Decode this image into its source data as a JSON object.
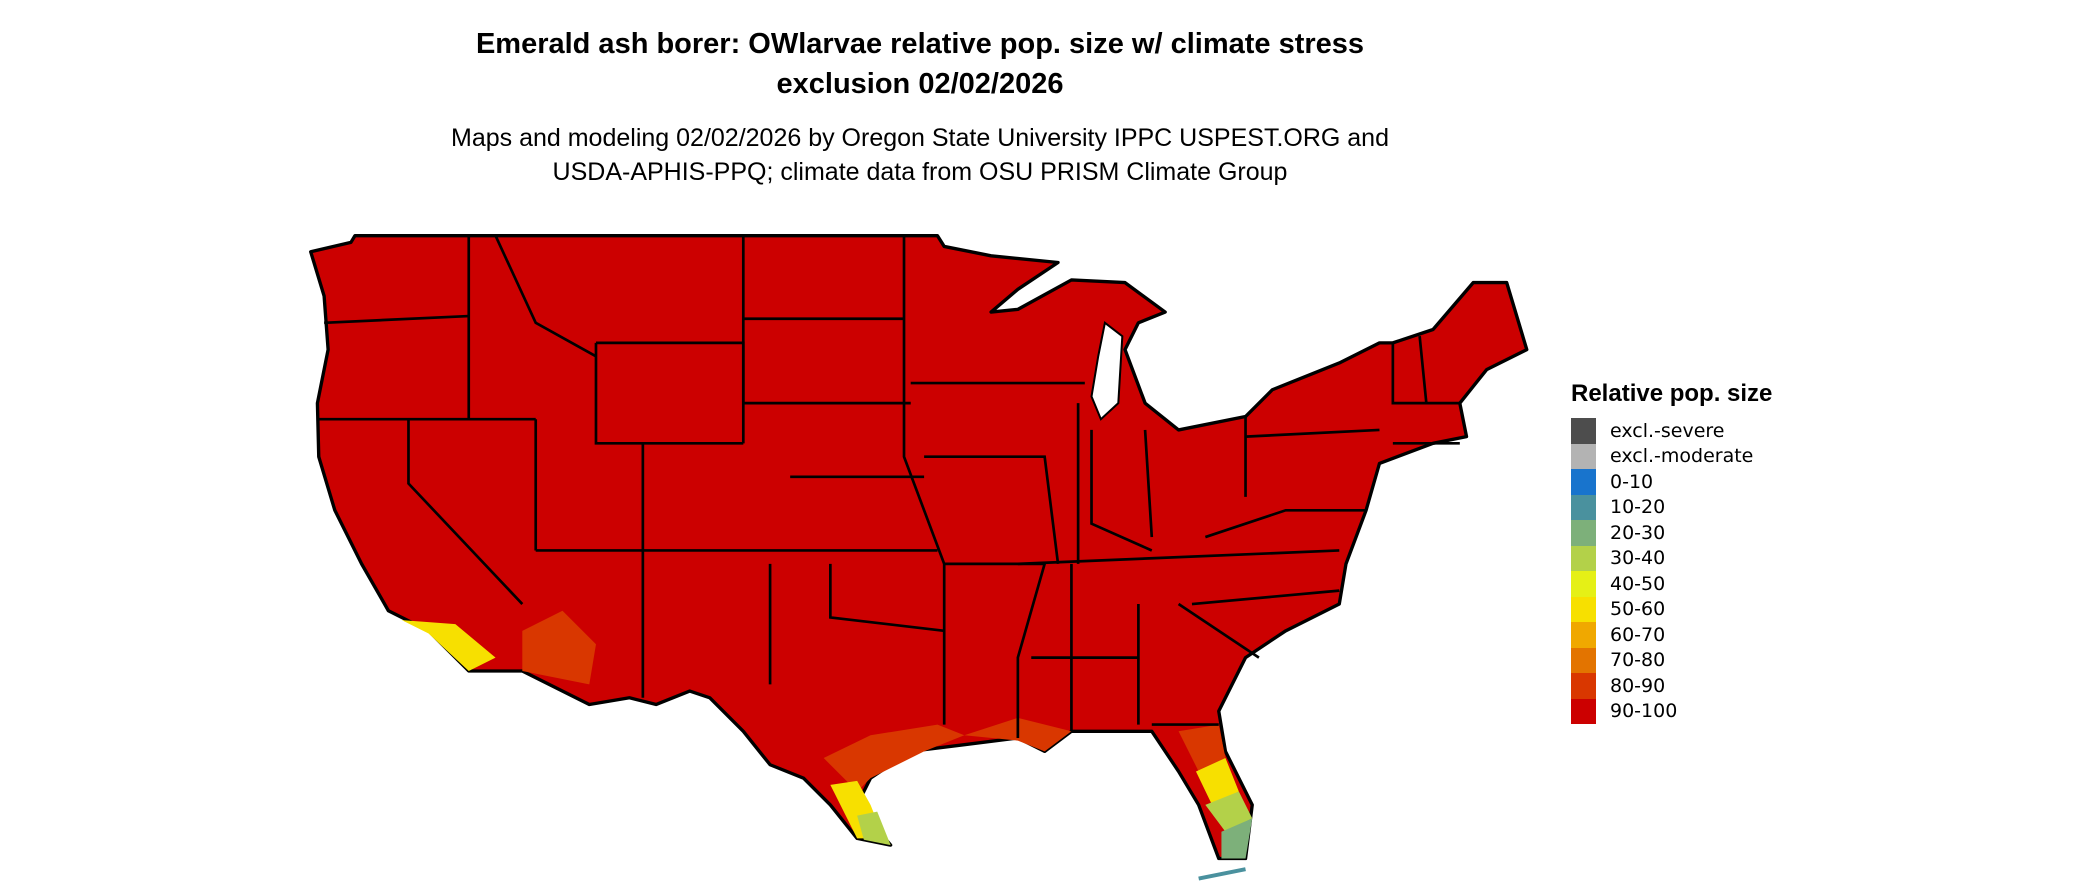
{
  "title": {
    "line1": "Emerald ash borer: OWlarvae relative pop. size w/ climate stress",
    "line2": "exclusion 02/02/2026"
  },
  "subtitle": {
    "line1": "Maps and modeling 02/02/2026 by Oregon State University IPPC USPEST.ORG and",
    "line2": "USDA-APHIS-PPQ; climate data from OSU PRISM Climate Group"
  },
  "legend": {
    "title": "Relative pop. size",
    "items": [
      {
        "label": "excl.-severe",
        "color": "#4d4d4d"
      },
      {
        "label": "excl.-moderate",
        "color": "#b3b3b3"
      },
      {
        "label": "0-10",
        "color": "#1874cd"
      },
      {
        "label": "10-20",
        "color": "#4a919e"
      },
      {
        "label": "20-30",
        "color": "#7db07a"
      },
      {
        "label": "30-40",
        "color": "#b3d149"
      },
      {
        "label": "40-50",
        "color": "#e5f016"
      },
      {
        "label": "50-60",
        "color": "#f7e000"
      },
      {
        "label": "60-70",
        "color": "#f0a800"
      },
      {
        "label": "70-80",
        "color": "#e37400"
      },
      {
        "label": "80-90",
        "color": "#d93700"
      },
      {
        "label": "90-100",
        "color": "#cc0000"
      }
    ]
  },
  "map": {
    "dominant_class": "90-100",
    "region": "contiguous United States"
  }
}
